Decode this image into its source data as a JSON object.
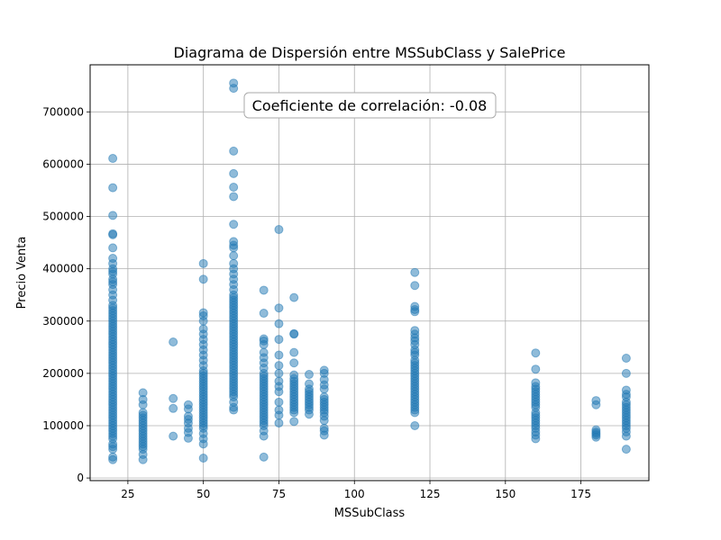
{
  "chart_data": {
    "type": "scatter",
    "title": "Diagrama de Dispersión entre MSSubClass y SalePrice",
    "xlabel": "MSSubClass",
    "ylabel": "Precio Venta",
    "xlim": [
      12.5,
      197.5
    ],
    "ylim": [
      -5000,
      790000
    ],
    "xticks": [
      25,
      50,
      75,
      100,
      125,
      150,
      175
    ],
    "yticks": [
      0,
      100000,
      200000,
      300000,
      400000,
      500000,
      600000,
      700000
    ],
    "grid": true,
    "annotation": "Coeficiente de correlación: -0.08",
    "marker_color": "#1f77b4",
    "marker_alpha": 0.5,
    "points": [
      [
        20,
        35000
      ],
      [
        20,
        40000
      ],
      [
        20,
        55000
      ],
      [
        20,
        60000
      ],
      [
        20,
        65000
      ],
      [
        20,
        75000
      ],
      [
        20,
        80000
      ],
      [
        20,
        85000
      ],
      [
        20,
        90000
      ],
      [
        20,
        95000
      ],
      [
        20,
        100000
      ],
      [
        20,
        105000
      ],
      [
        20,
        110000
      ],
      [
        20,
        115000
      ],
      [
        20,
        120000
      ],
      [
        20,
        125000
      ],
      [
        20,
        130000
      ],
      [
        20,
        135000
      ],
      [
        20,
        140000
      ],
      [
        20,
        145000
      ],
      [
        20,
        150000
      ],
      [
        20,
        155000
      ],
      [
        20,
        160000
      ],
      [
        20,
        165000
      ],
      [
        20,
        170000
      ],
      [
        20,
        175000
      ],
      [
        20,
        180000
      ],
      [
        20,
        185000
      ],
      [
        20,
        190000
      ],
      [
        20,
        195000
      ],
      [
        20,
        200000
      ],
      [
        20,
        205000
      ],
      [
        20,
        210000
      ],
      [
        20,
        215000
      ],
      [
        20,
        220000
      ],
      [
        20,
        225000
      ],
      [
        20,
        230000
      ],
      [
        20,
        235000
      ],
      [
        20,
        240000
      ],
      [
        20,
        245000
      ],
      [
        20,
        250000
      ],
      [
        20,
        255000
      ],
      [
        20,
        260000
      ],
      [
        20,
        265000
      ],
      [
        20,
        270000
      ],
      [
        20,
        275000
      ],
      [
        20,
        280000
      ],
      [
        20,
        285000
      ],
      [
        20,
        290000
      ],
      [
        20,
        295000
      ],
      [
        20,
        300000
      ],
      [
        20,
        305000
      ],
      [
        20,
        310000
      ],
      [
        20,
        315000
      ],
      [
        20,
        320000
      ],
      [
        20,
        325000
      ],
      [
        20,
        330000
      ],
      [
        20,
        340000
      ],
      [
        20,
        350000
      ],
      [
        20,
        360000
      ],
      [
        20,
        370000
      ],
      [
        20,
        375000
      ],
      [
        20,
        380000
      ],
      [
        20,
        390000
      ],
      [
        20,
        395000
      ],
      [
        20,
        400000
      ],
      [
        20,
        410000
      ],
      [
        20,
        420000
      ],
      [
        20,
        440000
      ],
      [
        20,
        465000
      ],
      [
        20,
        467000
      ],
      [
        20,
        502000
      ],
      [
        20,
        555000
      ],
      [
        20,
        611000
      ],
      [
        30,
        35000
      ],
      [
        30,
        45000
      ],
      [
        30,
        55000
      ],
      [
        30,
        60000
      ],
      [
        30,
        65000
      ],
      [
        30,
        70000
      ],
      [
        30,
        75000
      ],
      [
        30,
        80000
      ],
      [
        30,
        85000
      ],
      [
        30,
        90000
      ],
      [
        30,
        95000
      ],
      [
        30,
        100000
      ],
      [
        30,
        105000
      ],
      [
        30,
        110000
      ],
      [
        30,
        115000
      ],
      [
        30,
        120000
      ],
      [
        30,
        125000
      ],
      [
        30,
        140000
      ],
      [
        30,
        150000
      ],
      [
        30,
        163000
      ],
      [
        40,
        80000
      ],
      [
        40,
        133000
      ],
      [
        40,
        152000
      ],
      [
        40,
        260000
      ],
      [
        45,
        76000
      ],
      [
        45,
        87000
      ],
      [
        45,
        95000
      ],
      [
        45,
        105000
      ],
      [
        45,
        112000
      ],
      [
        45,
        118000
      ],
      [
        45,
        132000
      ],
      [
        45,
        140000
      ],
      [
        50,
        38000
      ],
      [
        50,
        65000
      ],
      [
        50,
        75000
      ],
      [
        50,
        85000
      ],
      [
        50,
        95000
      ],
      [
        50,
        100000
      ],
      [
        50,
        105000
      ],
      [
        50,
        110000
      ],
      [
        50,
        115000
      ],
      [
        50,
        120000
      ],
      [
        50,
        125000
      ],
      [
        50,
        130000
      ],
      [
        50,
        135000
      ],
      [
        50,
        140000
      ],
      [
        50,
        145000
      ],
      [
        50,
        150000
      ],
      [
        50,
        155000
      ],
      [
        50,
        160000
      ],
      [
        50,
        165000
      ],
      [
        50,
        170000
      ],
      [
        50,
        175000
      ],
      [
        50,
        180000
      ],
      [
        50,
        185000
      ],
      [
        50,
        190000
      ],
      [
        50,
        195000
      ],
      [
        50,
        200000
      ],
      [
        50,
        205000
      ],
      [
        50,
        215000
      ],
      [
        50,
        225000
      ],
      [
        50,
        235000
      ],
      [
        50,
        245000
      ],
      [
        50,
        255000
      ],
      [
        50,
        265000
      ],
      [
        50,
        275000
      ],
      [
        50,
        285000
      ],
      [
        50,
        300000
      ],
      [
        50,
        310000
      ],
      [
        50,
        316000
      ],
      [
        50,
        380000
      ],
      [
        50,
        410000
      ],
      [
        60,
        130000
      ],
      [
        60,
        135000
      ],
      [
        60,
        145000
      ],
      [
        60,
        155000
      ],
      [
        60,
        160000
      ],
      [
        60,
        165000
      ],
      [
        60,
        170000
      ],
      [
        60,
        175000
      ],
      [
        60,
        180000
      ],
      [
        60,
        185000
      ],
      [
        60,
        190000
      ],
      [
        60,
        195000
      ],
      [
        60,
        200000
      ],
      [
        60,
        205000
      ],
      [
        60,
        210000
      ],
      [
        60,
        215000
      ],
      [
        60,
        220000
      ],
      [
        60,
        225000
      ],
      [
        60,
        230000
      ],
      [
        60,
        235000
      ],
      [
        60,
        240000
      ],
      [
        60,
        245000
      ],
      [
        60,
        250000
      ],
      [
        60,
        255000
      ],
      [
        60,
        260000
      ],
      [
        60,
        265000
      ],
      [
        60,
        270000
      ],
      [
        60,
        275000
      ],
      [
        60,
        280000
      ],
      [
        60,
        285000
      ],
      [
        60,
        290000
      ],
      [
        60,
        295000
      ],
      [
        60,
        300000
      ],
      [
        60,
        305000
      ],
      [
        60,
        310000
      ],
      [
        60,
        315000
      ],
      [
        60,
        320000
      ],
      [
        60,
        325000
      ],
      [
        60,
        330000
      ],
      [
        60,
        335000
      ],
      [
        60,
        340000
      ],
      [
        60,
        345000
      ],
      [
        60,
        350000
      ],
      [
        60,
        360000
      ],
      [
        60,
        370000
      ],
      [
        60,
        380000
      ],
      [
        60,
        390000
      ],
      [
        60,
        400000
      ],
      [
        60,
        410000
      ],
      [
        60,
        425000
      ],
      [
        60,
        440000
      ],
      [
        60,
        445000
      ],
      [
        60,
        452000
      ],
      [
        60,
        485000
      ],
      [
        60,
        538000
      ],
      [
        60,
        556000
      ],
      [
        60,
        582000
      ],
      [
        60,
        625000
      ],
      [
        60,
        745000
      ],
      [
        60,
        755000
      ],
      [
        70,
        40000
      ],
      [
        70,
        80000
      ],
      [
        70,
        90000
      ],
      [
        70,
        100000
      ],
      [
        70,
        105000
      ],
      [
        70,
        110000
      ],
      [
        70,
        115000
      ],
      [
        70,
        120000
      ],
      [
        70,
        125000
      ],
      [
        70,
        130000
      ],
      [
        70,
        135000
      ],
      [
        70,
        140000
      ],
      [
        70,
        145000
      ],
      [
        70,
        150000
      ],
      [
        70,
        155000
      ],
      [
        70,
        160000
      ],
      [
        70,
        165000
      ],
      [
        70,
        170000
      ],
      [
        70,
        175000
      ],
      [
        70,
        180000
      ],
      [
        70,
        185000
      ],
      [
        70,
        190000
      ],
      [
        70,
        195000
      ],
      [
        70,
        200000
      ],
      [
        70,
        210000
      ],
      [
        70,
        220000
      ],
      [
        70,
        230000
      ],
      [
        70,
        240000
      ],
      [
        70,
        255000
      ],
      [
        70,
        262000
      ],
      [
        70,
        266000
      ],
      [
        70,
        315000
      ],
      [
        70,
        359000
      ],
      [
        75,
        105000
      ],
      [
        75,
        120000
      ],
      [
        75,
        130000
      ],
      [
        75,
        145000
      ],
      [
        75,
        165000
      ],
      [
        75,
        175000
      ],
      [
        75,
        185000
      ],
      [
        75,
        200000
      ],
      [
        75,
        215000
      ],
      [
        75,
        235000
      ],
      [
        75,
        265000
      ],
      [
        75,
        295000
      ],
      [
        75,
        325000
      ],
      [
        75,
        475000
      ],
      [
        80,
        108000
      ],
      [
        80,
        125000
      ],
      [
        80,
        130000
      ],
      [
        80,
        135000
      ],
      [
        80,
        140000
      ],
      [
        80,
        145000
      ],
      [
        80,
        150000
      ],
      [
        80,
        155000
      ],
      [
        80,
        160000
      ],
      [
        80,
        165000
      ],
      [
        80,
        170000
      ],
      [
        80,
        175000
      ],
      [
        80,
        180000
      ],
      [
        80,
        185000
      ],
      [
        80,
        190000
      ],
      [
        80,
        197000
      ],
      [
        80,
        220000
      ],
      [
        80,
        240000
      ],
      [
        80,
        275000
      ],
      [
        80,
        276000
      ],
      [
        80,
        345000
      ],
      [
        85,
        122000
      ],
      [
        85,
        130000
      ],
      [
        85,
        135000
      ],
      [
        85,
        140000
      ],
      [
        85,
        145000
      ],
      [
        85,
        150000
      ],
      [
        85,
        155000
      ],
      [
        85,
        160000
      ],
      [
        85,
        165000
      ],
      [
        85,
        170000
      ],
      [
        85,
        180000
      ],
      [
        85,
        198000
      ],
      [
        90,
        82000
      ],
      [
        90,
        90000
      ],
      [
        90,
        95000
      ],
      [
        90,
        110000
      ],
      [
        90,
        118000
      ],
      [
        90,
        125000
      ],
      [
        90,
        130000
      ],
      [
        90,
        135000
      ],
      [
        90,
        140000
      ],
      [
        90,
        145000
      ],
      [
        90,
        150000
      ],
      [
        90,
        155000
      ],
      [
        90,
        170000
      ],
      [
        90,
        178000
      ],
      [
        90,
        188000
      ],
      [
        90,
        200000
      ],
      [
        90,
        206000
      ],
      [
        120,
        100000
      ],
      [
        120,
        125000
      ],
      [
        120,
        130000
      ],
      [
        120,
        135000
      ],
      [
        120,
        140000
      ],
      [
        120,
        145000
      ],
      [
        120,
        150000
      ],
      [
        120,
        155000
      ],
      [
        120,
        160000
      ],
      [
        120,
        165000
      ],
      [
        120,
        170000
      ],
      [
        120,
        175000
      ],
      [
        120,
        180000
      ],
      [
        120,
        185000
      ],
      [
        120,
        190000
      ],
      [
        120,
        195000
      ],
      [
        120,
        200000
      ],
      [
        120,
        205000
      ],
      [
        120,
        210000
      ],
      [
        120,
        215000
      ],
      [
        120,
        220000
      ],
      [
        120,
        225000
      ],
      [
        120,
        235000
      ],
      [
        120,
        240000
      ],
      [
        120,
        245000
      ],
      [
        120,
        255000
      ],
      [
        120,
        262000
      ],
      [
        120,
        268000
      ],
      [
        120,
        275000
      ],
      [
        120,
        282000
      ],
      [
        120,
        318000
      ],
      [
        120,
        322000
      ],
      [
        120,
        328000
      ],
      [
        120,
        368000
      ],
      [
        120,
        393000
      ],
      [
        160,
        75000
      ],
      [
        160,
        82000
      ],
      [
        160,
        88000
      ],
      [
        160,
        95000
      ],
      [
        160,
        100000
      ],
      [
        160,
        105000
      ],
      [
        160,
        110000
      ],
      [
        160,
        115000
      ],
      [
        160,
        120000
      ],
      [
        160,
        125000
      ],
      [
        160,
        135000
      ],
      [
        160,
        140000
      ],
      [
        160,
        145000
      ],
      [
        160,
        150000
      ],
      [
        160,
        155000
      ],
      [
        160,
        160000
      ],
      [
        160,
        165000
      ],
      [
        160,
        170000
      ],
      [
        160,
        175000
      ],
      [
        160,
        182000
      ],
      [
        160,
        208000
      ],
      [
        160,
        239000
      ],
      [
        180,
        78000
      ],
      [
        180,
        82000
      ],
      [
        180,
        85000
      ],
      [
        180,
        88000
      ],
      [
        180,
        92000
      ],
      [
        180,
        140000
      ],
      [
        180,
        148000
      ],
      [
        190,
        55000
      ],
      [
        190,
        80000
      ],
      [
        190,
        88000
      ],
      [
        190,
        95000
      ],
      [
        190,
        100000
      ],
      [
        190,
        105000
      ],
      [
        190,
        110000
      ],
      [
        190,
        115000
      ],
      [
        190,
        120000
      ],
      [
        190,
        125000
      ],
      [
        190,
        130000
      ],
      [
        190,
        135000
      ],
      [
        190,
        140000
      ],
      [
        190,
        145000
      ],
      [
        190,
        155000
      ],
      [
        190,
        160000
      ],
      [
        190,
        168000
      ],
      [
        190,
        200000
      ],
      [
        190,
        229000
      ]
    ]
  }
}
